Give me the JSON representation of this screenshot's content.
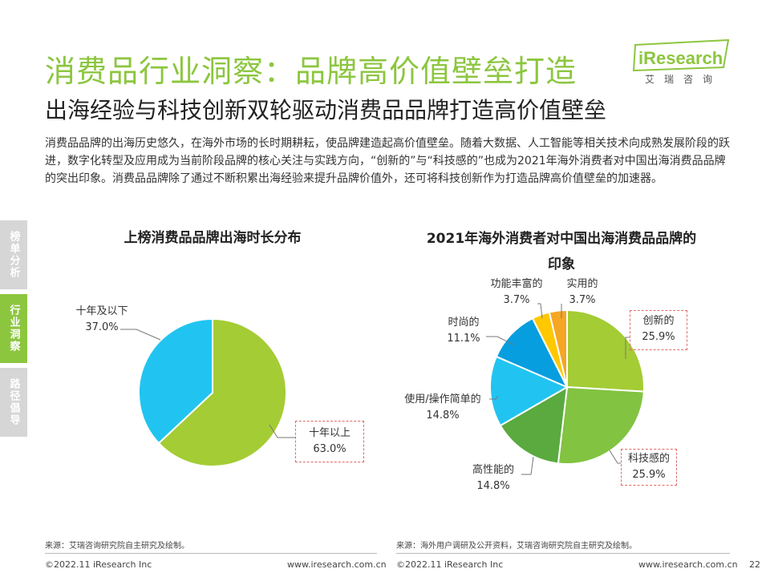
{
  "header": {
    "title": "消费品行业洞察：品牌高价值壁垒打造",
    "subtitle": "出海经验与科技创新双轮驱动消费品品牌打造高价值壁垒",
    "logo_text": "iResearch",
    "logo_cn": "艾瑞咨询"
  },
  "paragraph": "消费品品牌的出海历史悠久，在海外市场的长时期耕耘，使品牌建造起高价值壁垒。随着大数据、人工智能等相关技术向成熟发展阶段的跃进，数字化转型及应用成为当前阶段品牌的核心关注与实践方向，“创新的”与“科技感的”也成为2021年海外消费者对中国出海消费品品牌的突出印象。消费品品牌除了通过不断积累出海经验来提升品牌价值外，还可将科技创新作为打造品牌高价值壁垒的加速器。",
  "side_tabs": [
    {
      "label": "榜单分析",
      "active": false
    },
    {
      "label": "行业洞察",
      "active": true
    },
    {
      "label": "路径倡导",
      "active": false
    }
  ],
  "chart_data": [
    {
      "type": "pie",
      "title": "上榜消费品品牌出海时长分布",
      "slices": [
        {
          "label": "十年以上",
          "value": 63.0,
          "value_label": "63.0%",
          "color": "#a4cc34"
        },
        {
          "label": "十年及以下",
          "value": 37.0,
          "value_label": "37.0%",
          "color": "#21c4f0"
        }
      ]
    },
    {
      "type": "pie",
      "title": "2021年海外消费者对中国出海消费品品牌的印象",
      "slices": [
        {
          "label": "创新的",
          "value": 25.9,
          "value_label": "25.9%",
          "color": "#a4cc34"
        },
        {
          "label": "科技感的",
          "value": 25.9,
          "value_label": "25.9%",
          "color": "#82c341"
        },
        {
          "label": "高性能的",
          "value": 14.8,
          "value_label": "14.8%",
          "color": "#5aaa3f"
        },
        {
          "label": "使用/操作简单的",
          "value": 14.8,
          "value_label": "14.8%",
          "color": "#21c4f0"
        },
        {
          "label": "时尚的",
          "value": 11.1,
          "value_label": "11.1%",
          "color": "#079edf"
        },
        {
          "label": "功能丰富的",
          "value": 3.7,
          "value_label": "3.7%",
          "color": "#ffc800"
        },
        {
          "label": "实用的",
          "value": 3.7,
          "value_label": "3.7%",
          "color": "#f5a623"
        }
      ]
    }
  ],
  "sources": {
    "left": "来源：艾瑞咨询研究院自主研究及绘制。",
    "right": "来源：海外用户调研及公开资料，艾瑞咨询研究院自主研究及绘制。"
  },
  "footer": {
    "copyright": "©2022.11 iResearch Inc",
    "website": "www.iresearch.com.cn",
    "page": "22"
  }
}
